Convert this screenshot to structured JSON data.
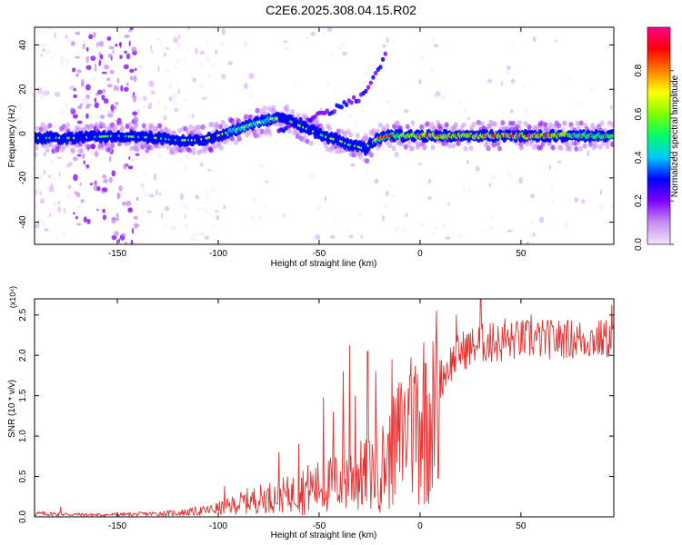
{
  "figure_title": "C2E6.2025.308.04.15.R02",
  "chart_data": [
    {
      "type": "heatmap",
      "xlabel": "Height of straight line (km)",
      "ylabel": "Frequency (Hz)",
      "xlim": [
        -191,
        96
      ],
      "ylim": [
        -50,
        48
      ],
      "xticks": [
        -150,
        -100,
        -50,
        0,
        50
      ],
      "yticks": [
        -40,
        -20,
        0,
        20,
        40
      ],
      "colorbar": {
        "label": "Normalized spectral amplitude",
        "range": [
          0,
          1
        ],
        "ticks": [
          "0.0",
          "0.2",
          "0.4",
          "0.6",
          "0.8"
        ],
        "colors": [
          "#f4e4fb",
          "#c78ef2",
          "#8000ff",
          "#0000ff",
          "#00c8ff",
          "#00ff66",
          "#7fff00",
          "#ffff00",
          "#ff8000",
          "#ff0000",
          "#ff0090"
        ]
      },
      "ridge": {
        "x": [
          -191,
          -170,
          -150,
          -130,
          -120,
          -110,
          -100,
          -90,
          -80,
          -72,
          -65,
          -58,
          -50,
          -45,
          -40,
          -35,
          -30,
          -27,
          -24,
          -20,
          -15,
          -10,
          0,
          20,
          50,
          96
        ],
        "y": [
          -2,
          -2,
          -1,
          -2,
          -3,
          -3,
          -1,
          2,
          5,
          7,
          6,
          3,
          0,
          -2,
          -3,
          -5,
          -6,
          -7,
          -4,
          -2,
          -1,
          -1,
          -1,
          -1,
          -1,
          -1
        ],
        "amplitude": [
          0.45,
          0.5,
          0.4,
          0.42,
          0.45,
          0.5,
          0.52,
          0.55,
          0.58,
          0.55,
          0.5,
          0.45,
          0.45,
          0.45,
          0.5,
          0.5,
          0.45,
          0.4,
          0.5,
          0.7,
          0.75,
          0.8,
          0.85,
          0.88,
          0.85,
          0.75
        ]
      },
      "branch": {
        "x": [
          -70,
          -60,
          -50,
          -40,
          -30,
          -25,
          -20,
          -17
        ],
        "y": [
          2,
          5,
          8,
          12,
          16,
          22,
          30,
          36
        ]
      }
    },
    {
      "type": "line",
      "xlabel": "Height of straight line (km)",
      "ylabel": "SNR (10 * v/v)",
      "multiplier": "(x10⁴)",
      "xlim": [
        -191,
        96
      ],
      "ylim": [
        0,
        2.7
      ],
      "xticks": [
        -150,
        -100,
        -50,
        0,
        50
      ],
      "yticks": [
        "0.0",
        "0.5",
        "1.0",
        "1.5",
        "2.0",
        "2.5"
      ],
      "line_color": "#e83030",
      "envelope": {
        "x": [
          -191,
          -160,
          -140,
          -120,
          -105,
          -95,
          -85,
          -75,
          -65,
          -55,
          -45,
          -35,
          -25,
          -15,
          -10,
          -5,
          0,
          5,
          8,
          10,
          15,
          20,
          30,
          40,
          50,
          60,
          70,
          80,
          96
        ],
        "y": [
          0.05,
          0.03,
          0.04,
          0.06,
          0.1,
          0.16,
          0.25,
          0.3,
          0.35,
          0.4,
          0.45,
          0.55,
          0.6,
          0.8,
          1.1,
          1.3,
          1.45,
          1.5,
          1.3,
          1.7,
          1.9,
          2.05,
          2.15,
          2.15,
          2.2,
          2.2,
          2.2,
          2.2,
          2.2
        ]
      },
      "spikes": [
        {
          "x": -178,
          "y": 0.12
        },
        {
          "x": -97,
          "y": 0.38
        },
        {
          "x": -70,
          "y": 0.8
        },
        {
          "x": -60,
          "y": 0.9
        },
        {
          "x": -48,
          "y": 1.48
        },
        {
          "x": -43,
          "y": 1.3
        },
        {
          "x": -38,
          "y": 1.8
        },
        {
          "x": -35,
          "y": 2.12
        },
        {
          "x": -32,
          "y": 1.5
        },
        {
          "x": -26,
          "y": 2.05
        },
        {
          "x": -22,
          "y": 1.8
        },
        {
          "x": -14,
          "y": 1.95
        },
        {
          "x": -9,
          "y": 1.45
        },
        {
          "x": -5,
          "y": 1.75
        },
        {
          "x": 3,
          "y": 1.9
        },
        {
          "x": 8,
          "y": 2.55
        },
        {
          "x": 9,
          "y": 0.48
        },
        {
          "x": 18,
          "y": 2.5
        },
        {
          "x": 30,
          "y": 2.72
        },
        {
          "x": 36,
          "y": 2.4
        },
        {
          "x": 42,
          "y": 2.45
        },
        {
          "x": 55,
          "y": 2.5
        },
        {
          "x": 72,
          "y": 2.35
        },
        {
          "x": 95,
          "y": 2.62
        }
      ]
    }
  ]
}
